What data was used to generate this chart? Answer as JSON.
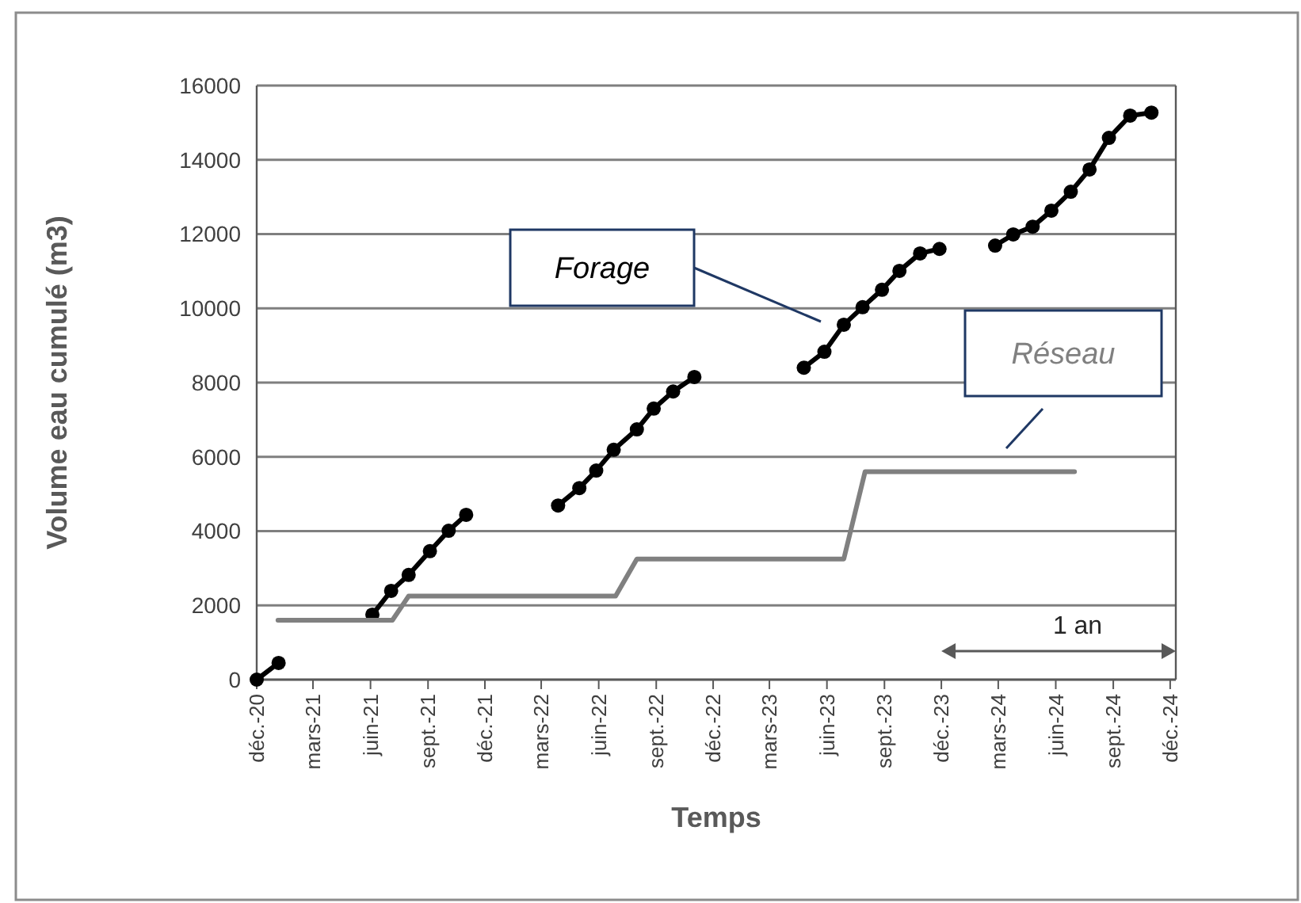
{
  "chart_data": {
    "type": "line",
    "xlabel": "Temps",
    "ylabel": "Volume eau cumulé (m3)",
    "xlim": [
      "2020-12-01",
      "2024-12-10"
    ],
    "xticks": [
      {
        "value": "2020-12-01",
        "label": "déc.-20"
      },
      {
        "value": "2021-03-01",
        "label": "mars-21"
      },
      {
        "value": "2021-06-01",
        "label": "juin-21"
      },
      {
        "value": "2021-09-01",
        "label": "sept.-21"
      },
      {
        "value": "2021-12-01",
        "label": "déc.-21"
      },
      {
        "value": "2022-03-01",
        "label": "mars-22"
      },
      {
        "value": "2022-06-01",
        "label": "juin-22"
      },
      {
        "value": "2022-09-01",
        "label": "sept.-22"
      },
      {
        "value": "2022-12-01",
        "label": "déc.-22"
      },
      {
        "value": "2023-03-01",
        "label": "mars-23"
      },
      {
        "value": "2023-06-01",
        "label": "juin-23"
      },
      {
        "value": "2023-09-01",
        "label": "sept.-23"
      },
      {
        "value": "2023-12-01",
        "label": "déc.-23"
      },
      {
        "value": "2024-03-01",
        "label": "mars-24"
      },
      {
        "value": "2024-06-01",
        "label": "juin-24"
      },
      {
        "value": "2024-09-01",
        "label": "sept.-24"
      },
      {
        "value": "2024-12-01",
        "label": "déc.-24"
      }
    ],
    "ylim": [
      0,
      16000
    ],
    "yticks": [
      0,
      2000,
      4000,
      6000,
      8000,
      10000,
      12000,
      14000,
      16000
    ],
    "grid": "y",
    "series": [
      {
        "name": "Forage",
        "color": "#000000",
        "marker": "circle",
        "x": [
          "2020-12-01",
          "2021-01-05",
          "2021-03-01",
          "2021-06-04",
          "2021-07-04",
          "2021-08-01",
          "2021-09-04",
          "2021-10-04",
          "2021-11-01",
          "2022-01-15",
          "2022-03-28",
          "2022-05-01",
          "2022-05-28",
          "2022-06-25",
          "2022-08-01",
          "2022-08-28",
          "2022-09-28",
          "2022-11-01",
          "2023-02-01",
          "2023-04-25",
          "2023-05-28",
          "2023-06-28",
          "2023-07-28",
          "2023-08-28",
          "2023-09-25",
          "2023-10-28",
          "2023-11-28",
          "2024-01-15",
          "2024-02-25",
          "2024-03-25",
          "2024-04-25",
          "2024-05-25",
          "2024-06-25",
          "2024-07-25",
          "2024-08-25",
          "2024-09-28",
          "2024-11-01"
        ],
        "values": [
          0,
          450,
          null,
          1750,
          2390,
          2820,
          3460,
          4010,
          4440,
          null,
          4690,
          5160,
          5630,
          6190,
          6740,
          7300,
          7760,
          8150,
          null,
          8400,
          8830,
          9560,
          10030,
          10500,
          11010,
          11480,
          11600,
          null,
          11690,
          11990,
          12200,
          12630,
          13140,
          13740,
          14590,
          15190,
          15270
        ]
      },
      {
        "name": "Réseau",
        "color": "#808080",
        "marker": "none",
        "x": [
          "2021-01-04",
          "2021-07-06",
          "2021-08-01",
          "2022-06-28",
          "2022-08-01",
          "2023-06-28",
          "2023-08-01",
          "2024-07-01"
        ],
        "values": [
          1600,
          1600,
          2250,
          2250,
          3250,
          3250,
          5600,
          5600
        ]
      }
    ],
    "annotations": [
      "1 an"
    ]
  }
}
